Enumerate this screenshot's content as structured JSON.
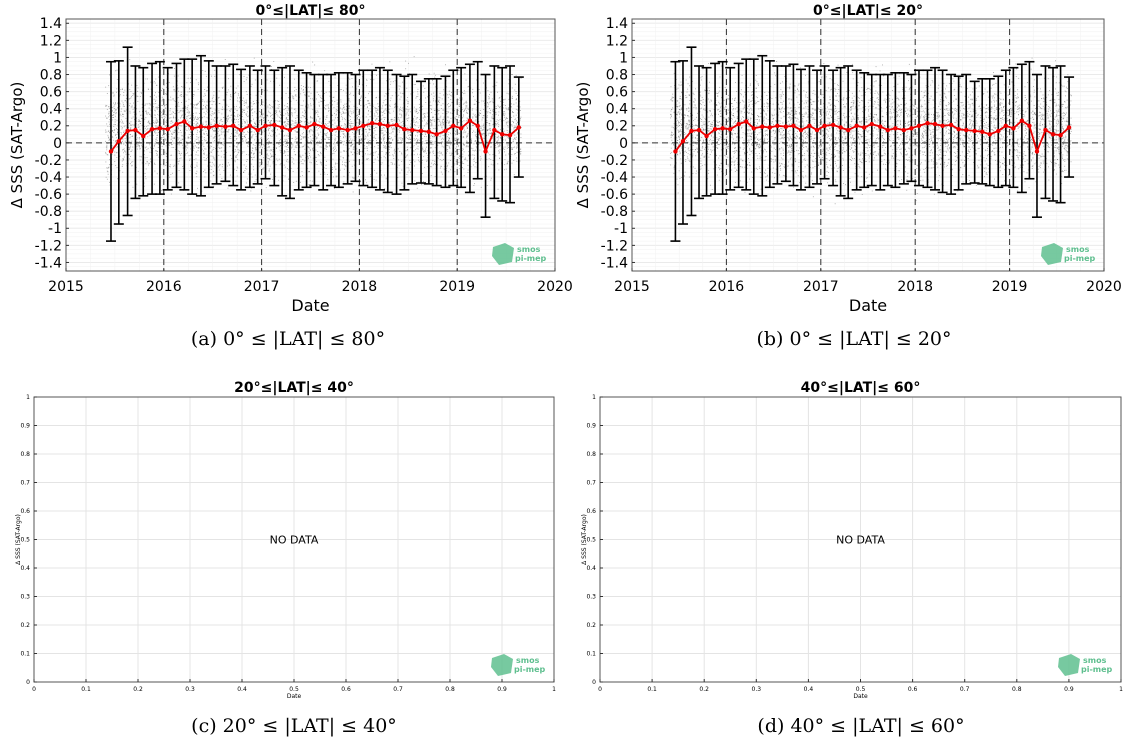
{
  "captions": [
    "(a) 0° ≤ |LAT| ≤ 80°",
    "(b) 0° ≤ |LAT| ≤ 20°",
    "(c) 20° ≤ |LAT| ≤ 40°",
    "(d) 40° ≤ |LAT| ≤ 60°"
  ],
  "logo_text": [
    "smos",
    "pi-mep"
  ],
  "colors": {
    "series": "#ee0000",
    "errorbar": "#000000",
    "scatter": "#6f6f6f",
    "logo": "#5fbf8f"
  },
  "chart_data": [
    {
      "type": "line",
      "title": "0°≤|LAT|≤ 80°",
      "xlabel": "Date",
      "ylabel": "Δ SSS (SAT-Argo)",
      "x_ticks": [
        "2015",
        "2016",
        "2017",
        "2018",
        "2019",
        "2020"
      ],
      "xlim": [
        2015,
        2020
      ],
      "y_ticks": [
        "1.4",
        "1.2",
        "1",
        "0.8",
        "0.6",
        "0.4",
        "0.2",
        "0",
        "-0.2",
        "-0.4",
        "-0.6",
        "-0.8",
        "-1",
        "-1.2",
        "-1.4"
      ],
      "ylim": [
        -1.5,
        1.45
      ],
      "grid": true,
      "vertical_dashed_lines": [
        2016,
        2017,
        2018,
        2019
      ],
      "series": [
        {
          "x": [
            2015.46,
            2015.54,
            2015.63,
            2015.71,
            2015.79,
            2015.88,
            2015.96,
            2016.04,
            2016.13,
            2016.21,
            2016.29,
            2016.38,
            2016.46,
            2016.54,
            2016.63,
            2016.71,
            2016.79,
            2016.88,
            2016.96,
            2017.04,
            2017.13,
            2017.21,
            2017.29,
            2017.38,
            2017.46,
            2017.54,
            2017.63,
            2017.71,
            2017.79,
            2017.88,
            2017.96,
            2018.04,
            2018.13,
            2018.21,
            2018.29,
            2018.38,
            2018.46,
            2018.54,
            2018.63,
            2018.71,
            2018.79,
            2018.88,
            2018.96,
            2019.04,
            2019.13,
            2019.21,
            2019.29,
            2019.38,
            2019.46,
            2019.54,
            2019.63
          ],
          "mean": [
            -0.1,
            0.02,
            0.14,
            0.15,
            0.08,
            0.16,
            0.17,
            0.16,
            0.22,
            0.25,
            0.17,
            0.19,
            0.18,
            0.2,
            0.19,
            0.2,
            0.15,
            0.2,
            0.15,
            0.2,
            0.21,
            0.18,
            0.15,
            0.2,
            0.18,
            0.22,
            0.19,
            0.15,
            0.17,
            0.15,
            0.17,
            0.2,
            0.23,
            0.22,
            0.2,
            0.21,
            0.16,
            0.15,
            0.14,
            0.13,
            0.1,
            0.14,
            0.2,
            0.17,
            0.26,
            0.2,
            -0.1,
            0.15,
            0.1,
            0.09,
            0.18
          ],
          "upper": [
            0.95,
            0.96,
            1.12,
            0.9,
            0.88,
            0.93,
            0.95,
            0.88,
            0.93,
            0.98,
            0.98,
            1.02,
            0.96,
            0.9,
            0.9,
            0.92,
            0.86,
            0.9,
            0.85,
            0.9,
            0.85,
            0.88,
            0.9,
            0.85,
            0.82,
            0.8,
            0.8,
            0.8,
            0.82,
            0.82,
            0.8,
            0.85,
            0.85,
            0.88,
            0.85,
            0.8,
            0.78,
            0.8,
            0.72,
            0.75,
            0.75,
            0.78,
            0.85,
            0.88,
            0.92,
            0.95,
            0.8,
            0.9,
            0.88,
            0.9,
            0.77
          ],
          "lower": [
            -1.15,
            -0.95,
            -0.85,
            -0.65,
            -0.62,
            -0.6,
            -0.6,
            -0.55,
            -0.52,
            -0.55,
            -0.6,
            -0.62,
            -0.52,
            -0.48,
            -0.45,
            -0.5,
            -0.55,
            -0.52,
            -0.48,
            -0.42,
            -0.5,
            -0.62,
            -0.65,
            -0.55,
            -0.52,
            -0.5,
            -0.55,
            -0.5,
            -0.52,
            -0.48,
            -0.45,
            -0.5,
            -0.52,
            -0.55,
            -0.58,
            -0.6,
            -0.55,
            -0.48,
            -0.47,
            -0.48,
            -0.5,
            -0.52,
            -0.5,
            -0.52,
            -0.58,
            -0.42,
            -0.87,
            -0.65,
            -0.68,
            -0.7,
            -0.4
          ]
        }
      ]
    },
    {
      "type": "line",
      "title": "0°≤|LAT|≤ 20°",
      "xlabel": "Date",
      "ylabel": "Δ SSS (SAT-Argo)",
      "x_ticks": [
        "2015",
        "2016",
        "2017",
        "2018",
        "2019",
        "2020"
      ],
      "xlim": [
        2015,
        2020
      ],
      "y_ticks": [
        "1.4",
        "1.2",
        "1",
        "0.8",
        "0.6",
        "0.4",
        "0.2",
        "0",
        "-0.2",
        "-0.4",
        "-0.6",
        "-0.8",
        "-1",
        "-1.2",
        "-1.4"
      ],
      "ylim": [
        -1.5,
        1.45
      ],
      "grid": true,
      "vertical_dashed_lines": [
        2016,
        2017,
        2018,
        2019
      ],
      "series": [
        {
          "x": [
            2015.46,
            2015.54,
            2015.63,
            2015.71,
            2015.79,
            2015.88,
            2015.96,
            2016.04,
            2016.13,
            2016.21,
            2016.29,
            2016.38,
            2016.46,
            2016.54,
            2016.63,
            2016.71,
            2016.79,
            2016.88,
            2016.96,
            2017.04,
            2017.13,
            2017.21,
            2017.29,
            2017.38,
            2017.46,
            2017.54,
            2017.63,
            2017.71,
            2017.79,
            2017.88,
            2017.96,
            2018.04,
            2018.13,
            2018.21,
            2018.29,
            2018.38,
            2018.46,
            2018.54,
            2018.63,
            2018.71,
            2018.79,
            2018.88,
            2018.96,
            2019.04,
            2019.13,
            2019.21,
            2019.29,
            2019.38,
            2019.46,
            2019.54,
            2019.63
          ],
          "mean": [
            -0.1,
            0.02,
            0.14,
            0.15,
            0.08,
            0.16,
            0.17,
            0.16,
            0.22,
            0.25,
            0.17,
            0.19,
            0.18,
            0.2,
            0.19,
            0.2,
            0.15,
            0.2,
            0.15,
            0.2,
            0.21,
            0.18,
            0.15,
            0.2,
            0.18,
            0.22,
            0.19,
            0.15,
            0.17,
            0.15,
            0.17,
            0.2,
            0.23,
            0.22,
            0.2,
            0.21,
            0.16,
            0.15,
            0.14,
            0.13,
            0.1,
            0.14,
            0.2,
            0.17,
            0.26,
            0.2,
            -0.1,
            0.15,
            0.1,
            0.09,
            0.18
          ],
          "upper": [
            0.95,
            0.96,
            1.12,
            0.9,
            0.88,
            0.93,
            0.95,
            0.88,
            0.93,
            0.98,
            0.98,
            1.02,
            0.96,
            0.9,
            0.9,
            0.92,
            0.86,
            0.9,
            0.85,
            0.9,
            0.85,
            0.88,
            0.9,
            0.85,
            0.82,
            0.8,
            0.8,
            0.8,
            0.82,
            0.82,
            0.8,
            0.85,
            0.85,
            0.88,
            0.85,
            0.8,
            0.78,
            0.8,
            0.72,
            0.75,
            0.75,
            0.78,
            0.85,
            0.88,
            0.92,
            0.95,
            0.8,
            0.9,
            0.88,
            0.9,
            0.77
          ],
          "lower": [
            -1.15,
            -0.95,
            -0.85,
            -0.65,
            -0.62,
            -0.6,
            -0.6,
            -0.55,
            -0.52,
            -0.55,
            -0.6,
            -0.62,
            -0.52,
            -0.48,
            -0.45,
            -0.5,
            -0.55,
            -0.52,
            -0.48,
            -0.42,
            -0.5,
            -0.62,
            -0.65,
            -0.55,
            -0.52,
            -0.5,
            -0.55,
            -0.5,
            -0.52,
            -0.48,
            -0.45,
            -0.5,
            -0.52,
            -0.55,
            -0.58,
            -0.6,
            -0.55,
            -0.48,
            -0.47,
            -0.48,
            -0.5,
            -0.52,
            -0.5,
            -0.52,
            -0.58,
            -0.42,
            -0.87,
            -0.65,
            -0.68,
            -0.7,
            -0.4
          ]
        }
      ]
    },
    {
      "type": "line",
      "title": "20°≤|LAT|≤ 40°",
      "xlabel": "Date",
      "ylabel": "Δ SSS (SAT-Argo)",
      "x_ticks": [
        "0",
        "0.1",
        "0.2",
        "0.3",
        "0.4",
        "0.5",
        "0.6",
        "0.7",
        "0.8",
        "0.9",
        "1"
      ],
      "xlim": [
        0,
        1
      ],
      "y_ticks": [
        "1",
        "0.9",
        "0.8",
        "0.7",
        "0.6",
        "0.5",
        "0.4",
        "0.3",
        "0.2",
        "0.1",
        "0"
      ],
      "ylim": [
        0,
        1
      ],
      "grid": true,
      "annotation": "NO DATA",
      "series": []
    },
    {
      "type": "line",
      "title": "40°≤|LAT|≤ 60°",
      "xlabel": "Date",
      "ylabel": "Δ SSS (SAT-Argo)",
      "x_ticks": [
        "0",
        "0.1",
        "0.2",
        "0.3",
        "0.4",
        "0.5",
        "0.6",
        "0.7",
        "0.8",
        "0.9",
        "1"
      ],
      "xlim": [
        0,
        1
      ],
      "y_ticks": [
        "1",
        "0.9",
        "0.8",
        "0.7",
        "0.6",
        "0.5",
        "0.4",
        "0.3",
        "0.2",
        "0.1",
        "0"
      ],
      "ylim": [
        0,
        1
      ],
      "grid": true,
      "annotation": "NO DATA",
      "series": []
    }
  ]
}
